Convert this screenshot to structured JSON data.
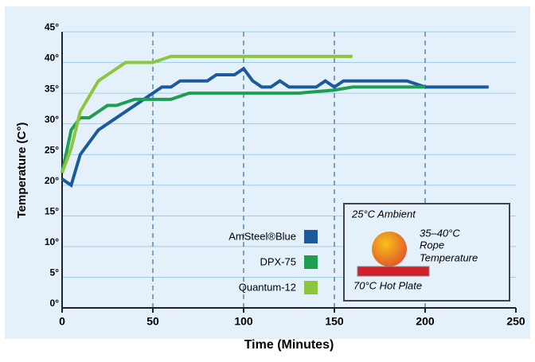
{
  "chart_data": {
    "type": "line",
    "ylabel": "Temperature (C°)",
    "xlabel": "Time (Minutes)",
    "xlim": [
      0,
      250
    ],
    "xticks": [
      0,
      50,
      100,
      150,
      200,
      250
    ],
    "ylim": [
      0,
      45
    ],
    "yticks": [
      {
        "value": 0,
        "label": "0°"
      },
      {
        "value": 5,
        "label": "5°"
      },
      {
        "value": 10,
        "label": "10°"
      },
      {
        "value": 15,
        "label": "15°"
      },
      {
        "value": 20,
        "label": "20°"
      },
      {
        "value": 25,
        "label": "25°"
      },
      {
        "value": 30,
        "label": "30°"
      },
      {
        "value": 35,
        "label": "35°"
      },
      {
        "value": 40,
        "label": "40°"
      },
      {
        "value": 45,
        "label": "45°"
      }
    ],
    "grid": true,
    "series": [
      {
        "name": "AmSteel®Blue",
        "color": "#1b5b9b",
        "x": [
          0,
          5,
          10,
          20,
          30,
          40,
          50,
          55,
          60,
          65,
          80,
          85,
          95,
          100,
          105,
          110,
          115,
          120,
          125,
          140,
          145,
          150,
          155,
          190,
          200,
          235
        ],
        "values": [
          21,
          20,
          25,
          29,
          31,
          33,
          35,
          36,
          36,
          37,
          37,
          38,
          38,
          39,
          37,
          36,
          36,
          37,
          36,
          36,
          37,
          36,
          37,
          37,
          36,
          36
        ]
      },
      {
        "name": "DPX-75",
        "color": "#1e9e50",
        "x": [
          0,
          5,
          10,
          15,
          20,
          25,
          30,
          40,
          60,
          70,
          130,
          150,
          160,
          200
        ],
        "values": [
          22,
          29,
          31,
          31,
          32,
          33,
          33,
          34,
          34,
          35,
          35,
          35.5,
          36,
          36
        ]
      },
      {
        "name": "Quantum-12",
        "color": "#8cc63f",
        "x": [
          0,
          5,
          10,
          20,
          35,
          50,
          60,
          160
        ],
        "values": [
          22,
          26,
          32,
          37,
          40,
          40,
          41,
          41
        ]
      }
    ],
    "annotations": [
      "25°C Ambient",
      "35–40°C",
      "Rope",
      "Temperature",
      "70°C Hot Plate"
    ]
  }
}
